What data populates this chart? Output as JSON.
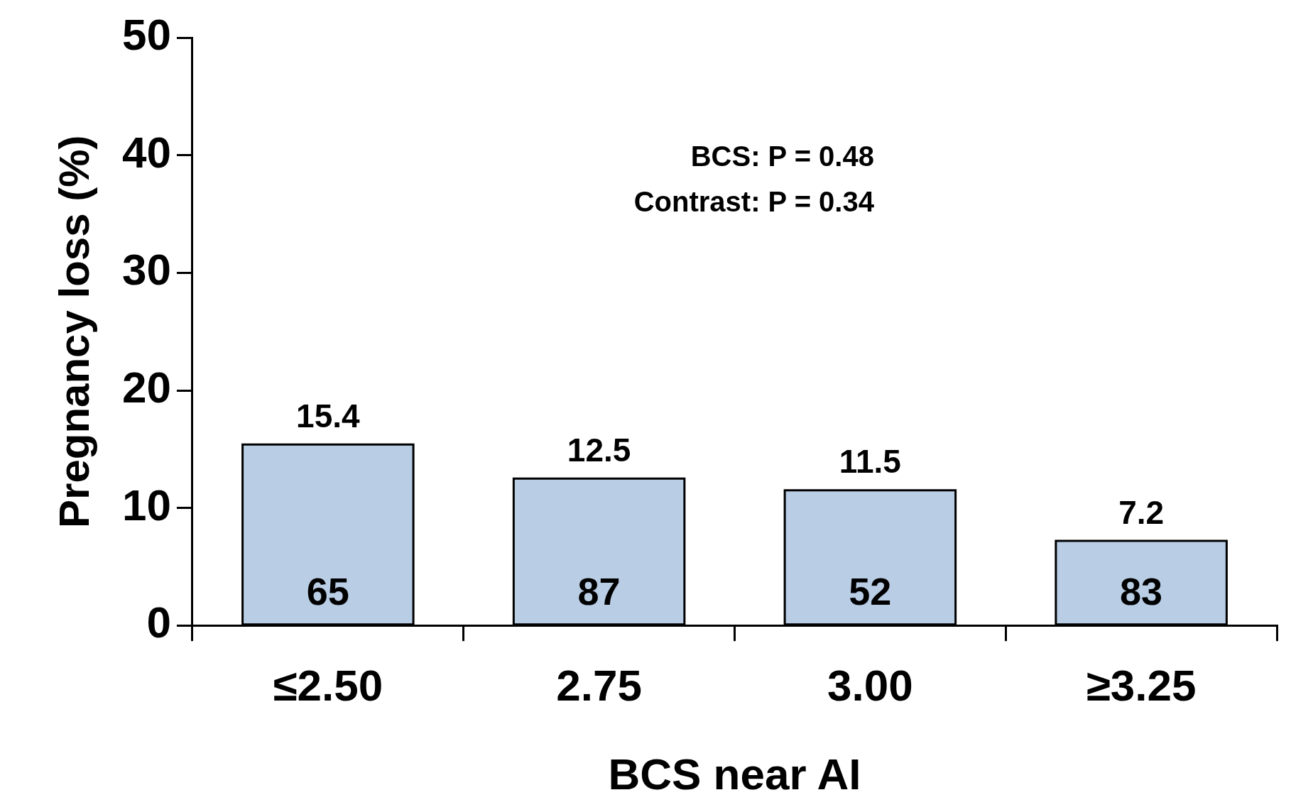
{
  "chart_data": {
    "type": "bar",
    "xlabel": "BCS near AI",
    "ylabel": "Pregnancy loss (%)",
    "categories": [
      "≤2.50",
      "2.75",
      "3.00",
      "≥3.25"
    ],
    "values": [
      15.4,
      12.5,
      11.5,
      7.2
    ],
    "color": "#b9cde5",
    "ylim": [
      0,
      50
    ],
    "yticks": [
      0,
      10,
      20,
      30,
      40,
      50
    ],
    "grid": false,
    "legend": false,
    "data_labels": true,
    "annotations": [
      "BCS: P = 0.48",
      "Contrast: P = 0.34",
      "65",
      "87",
      "52",
      "83"
    ]
  }
}
